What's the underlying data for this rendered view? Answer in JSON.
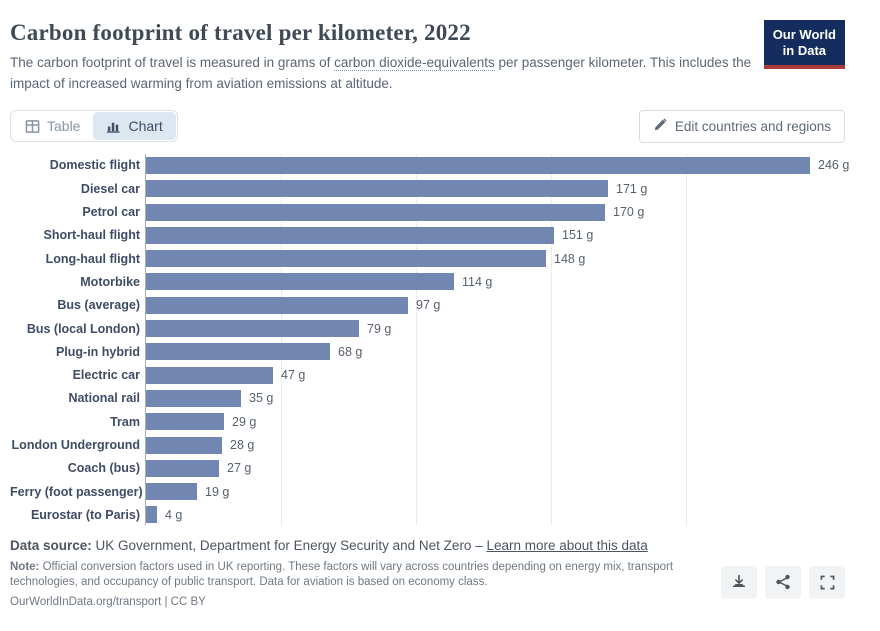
{
  "header": {
    "title": "Carbon footprint of travel per kilometer, 2022",
    "subtitle_prefix": "The carbon footprint of travel is measured in grams of ",
    "subtitle_term": "carbon dioxide-equivalents",
    "subtitle_suffix": " per passenger kilometer. This includes the impact of increased warming from aviation emissions at altitude.",
    "logo_line1": "Our World",
    "logo_line2": "in Data"
  },
  "toolbar": {
    "table_tab": "Table",
    "chart_tab": "Chart",
    "edit_button": "Edit countries and regions"
  },
  "chart_data": {
    "type": "bar",
    "orientation": "horizontal",
    "title": "Carbon footprint of travel per kilometer, 2022",
    "categories": [
      "Domestic flight",
      "Diesel car",
      "Petrol car",
      "Short-haul flight",
      "Long-haul flight",
      "Motorbike",
      "Bus (average)",
      "Bus (local London)",
      "Plug-in hybrid",
      "Electric car",
      "National rail",
      "Tram",
      "London Underground",
      "Coach (bus)",
      "Ferry (foot passenger)",
      "Eurostar (to Paris)"
    ],
    "values": [
      246,
      171,
      170,
      151,
      148,
      114,
      97,
      79,
      68,
      47,
      35,
      29,
      28,
      27,
      19,
      4
    ],
    "unit": "g",
    "value_suffix": " g",
    "xlabel": "",
    "ylabel": "",
    "xlim": [
      0,
      250
    ],
    "gridline_values": [
      50,
      100,
      150,
      200
    ],
    "grid": true,
    "legend": "none",
    "bar_color": "#7286b2"
  },
  "footer": {
    "source_label": "Data source:",
    "source_text": " UK Government, Department for Energy Security and Net Zero – ",
    "source_link": "Learn more about this data",
    "note_label": "Note:",
    "note_text": " Official conversion factors used in UK reporting. These factors will vary across countries depending on energy mix, transport technologies, and occupancy of public transport. Data for aviation is based on economy class.",
    "citation": "OurWorldInData.org/transport | CC BY"
  },
  "colors": {
    "bar": "#7286b2",
    "logo_navy": "#152d5e",
    "logo_red": "#a93c38",
    "active_tab_bg": "#dde7f2"
  }
}
